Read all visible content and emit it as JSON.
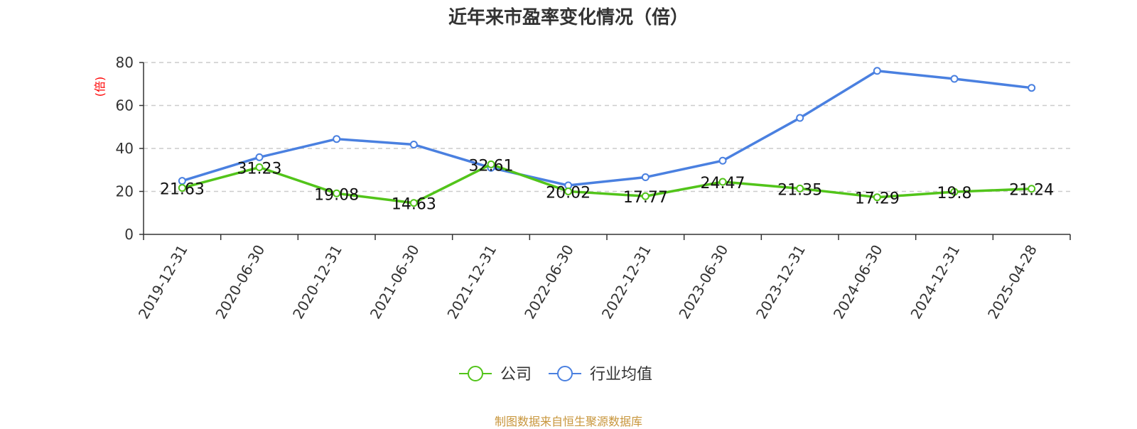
{
  "chart_data": {
    "type": "line",
    "title": "近年来市盈率变化情况（倍）",
    "ylabel": "(倍)",
    "xlabel": "",
    "ylim": [
      0,
      80
    ],
    "yticks": [
      0,
      20,
      40,
      60,
      80
    ],
    "grid": true,
    "legend_position": "bottom",
    "categories": [
      "2019-12-31",
      "2020-06-30",
      "2020-12-31",
      "2021-06-30",
      "2021-12-31",
      "2022-06-30",
      "2022-12-31",
      "2023-06-30",
      "2023-12-31",
      "2024-06-30",
      "2024-12-31",
      "2025-04-28"
    ],
    "series": [
      {
        "name": "公司",
        "color": "#52c41a",
        "values": [
          21.63,
          31.23,
          19.08,
          14.63,
          32.61,
          20.02,
          17.77,
          24.47,
          21.35,
          17.29,
          19.8,
          21.24
        ],
        "labels": [
          "21.63",
          "31.23",
          "19.08",
          "14.63",
          "32.61",
          "20.02",
          "17.77",
          "24.47",
          "21.35",
          "17.29",
          "19.8",
          "21.24"
        ]
      },
      {
        "name": "行业均值",
        "color": "#4a80e0",
        "values": [
          24.9,
          35.9,
          44.4,
          41.8,
          31.0,
          22.8,
          26.6,
          34.3,
          54.2,
          76.1,
          72.4,
          68.2
        ]
      }
    ]
  },
  "source_note": "制图数据来自恒生聚源数据库"
}
